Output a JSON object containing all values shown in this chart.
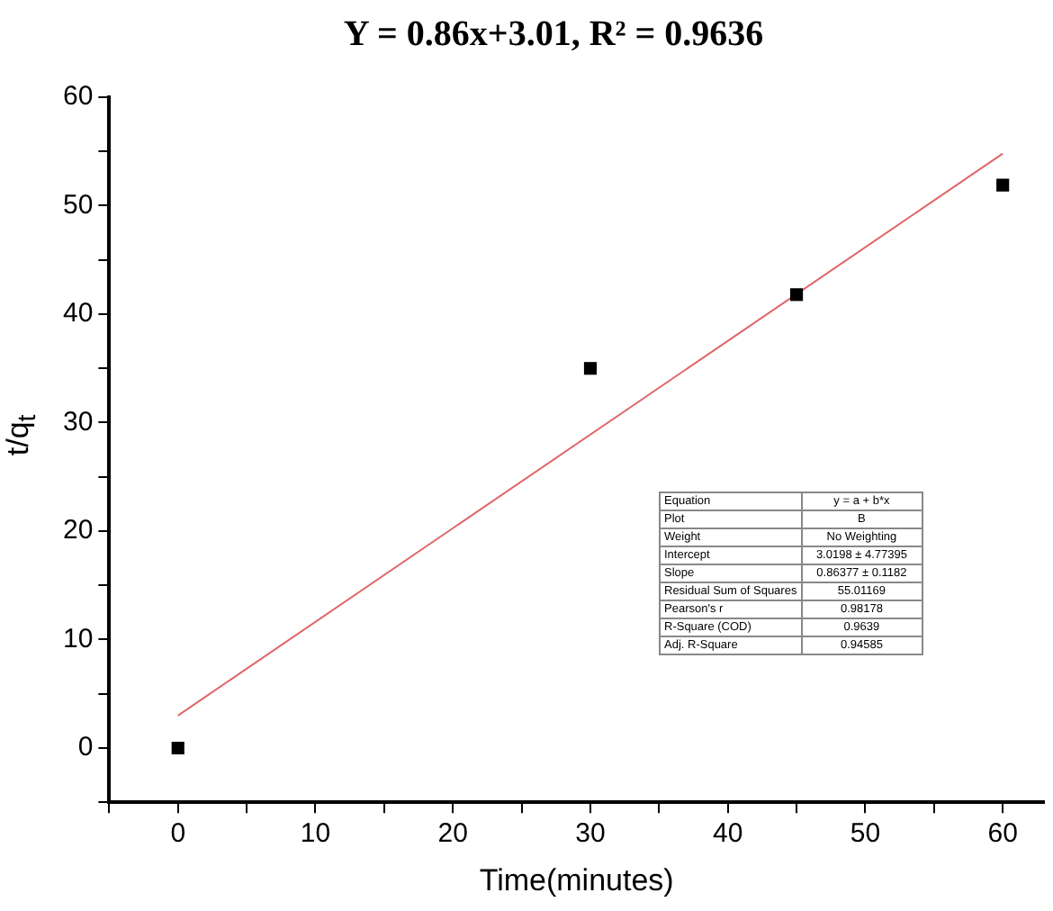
{
  "chart_data": {
    "type": "scatter",
    "title": "Y = 0.86x+3.01, R² = 0.9636",
    "xlabel": "Time(minutes)",
    "ylabel": "t/q$_{t}$",
    "series": [
      {
        "color": "#000000",
        "x": [
          0,
          30,
          45,
          60
        ],
        "values": [
          0,
          35,
          41.8,
          51.9
        ],
        "marker": "square"
      },
      {
        "type": "line",
        "color": "#e06666",
        "x": [
          0,
          60
        ],
        "values": [
          3,
          54.8
        ],
        "marker": "none"
      }
    ],
    "xlim": [
      -5,
      63
    ],
    "xticks": [
      {
        "value": -5,
        "label": null
      },
      0,
      {
        "value": 5,
        "label": null
      },
      10,
      {
        "value": 15,
        "label": null
      },
      20,
      {
        "value": 25,
        "label": null
      },
      30,
      {
        "value": 35,
        "label": null
      },
      40,
      {
        "value": 45,
        "label": null
      },
      50,
      {
        "value": 55,
        "label": null
      },
      60
    ],
    "ylim": [
      -5,
      60
    ],
    "yticks": [
      {
        "value": -5,
        "label": null
      },
      0,
      {
        "value": 5,
        "label": null
      },
      10,
      {
        "value": 15,
        "label": null
      },
      20,
      {
        "value": 25,
        "label": null
      },
      30,
      {
        "value": 35,
        "label": null
      },
      40,
      {
        "value": 45,
        "label": null
      },
      50,
      {
        "value": 55,
        "label": null
      },
      60
    ],
    "grid": false,
    "legend": false,
    "annotations": [
      "Equation",
      "y = a + b*x",
      "Plot",
      "B",
      "Weight",
      "No Weighting",
      "Intercept",
      "3.0198 ± 4.77395",
      "Slope",
      "0.86377 ± 0.1182",
      "Residual Sum of Squares",
      "55.01169",
      "Pearson's r",
      "0.98178",
      "R-Square (COD)",
      "0.9639",
      "Adj. R-Square",
      "0.94585"
    ]
  }
}
